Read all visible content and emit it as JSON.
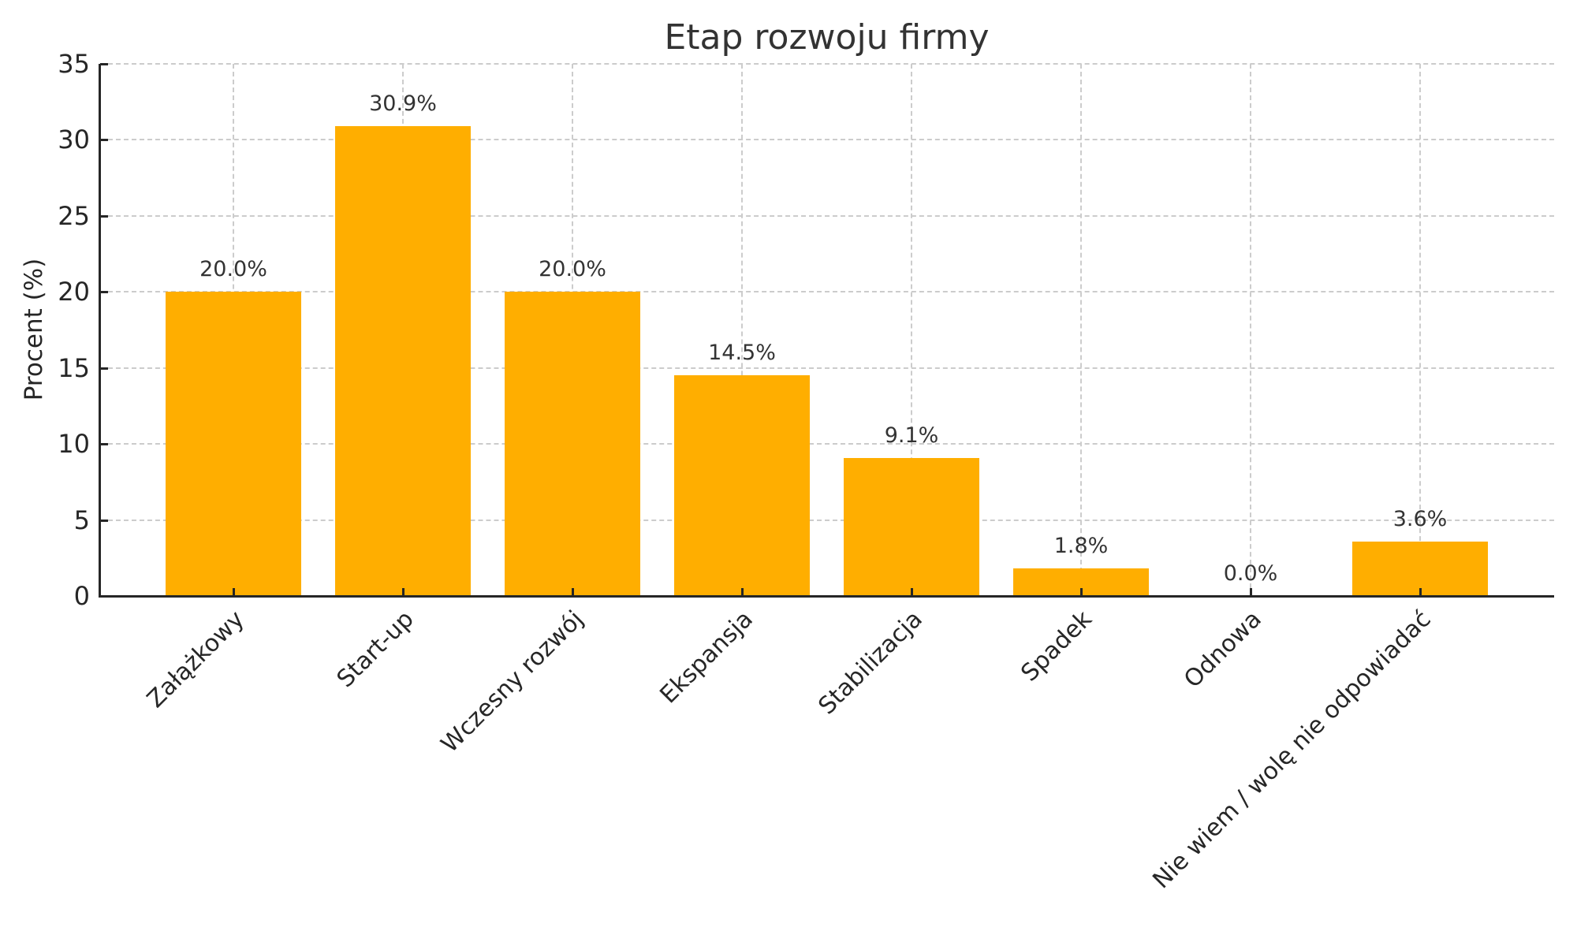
{
  "chart_data": {
    "type": "bar",
    "title": "Etap rozwoju firmy",
    "xlabel": "",
    "ylabel": "Procent (%)",
    "categories": [
      "Załążkowy",
      "Start-up",
      "Wczesny rozwój",
      "Ekspansja",
      "Stabilizacja",
      "Spadek",
      "Odnowa",
      "Nie wiem / wolę nie odpowiadać"
    ],
    "values": [
      20.0,
      30.9,
      20.0,
      14.5,
      9.1,
      1.8,
      0.0,
      3.6
    ],
    "value_labels": [
      "20.0%",
      "30.9%",
      "20.0%",
      "14.5%",
      "9.1%",
      "1.8%",
      "0.0%",
      "3.6%"
    ],
    "ylim": [
      0,
      35
    ],
    "yticks": [
      0,
      5,
      10,
      15,
      20,
      25,
      30,
      35
    ],
    "grid": true,
    "grid_style": "dashed",
    "legend": null,
    "xtick_rotation": 45,
    "bar_color": "#FFAE00"
  }
}
